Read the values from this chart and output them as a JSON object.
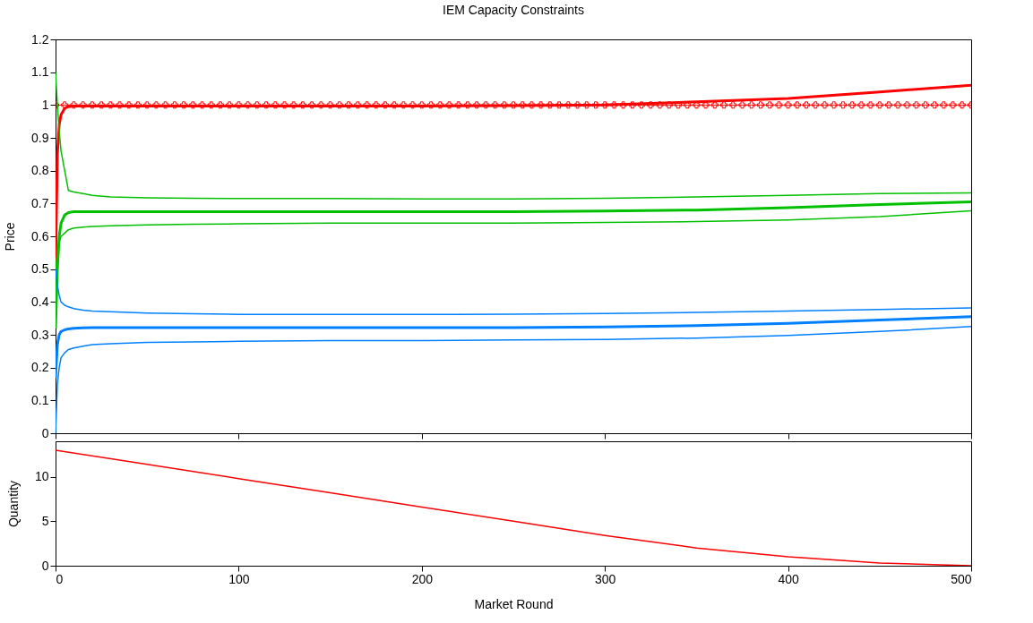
{
  "chart_data": [
    {
      "type": "line",
      "title": "IEM Capacity Constraints",
      "ylabel": "Price",
      "xlim": [
        0,
        500
      ],
      "xticks": [
        0,
        100,
        200,
        300,
        400,
        500
      ],
      "ylim": [
        0,
        1.2
      ],
      "yticks": [
        0,
        0.1,
        0.2,
        0.3,
        0.4,
        0.5,
        0.6,
        0.7,
        0.8,
        0.9,
        1,
        1.1,
        1.2
      ],
      "tick_labels": "y",
      "x": [
        0,
        1,
        2,
        3,
        5,
        7,
        10,
        15,
        20,
        30,
        50,
        75,
        100,
        150,
        200,
        250,
        300,
        350,
        400,
        450,
        500
      ],
      "series": [
        {
          "color": "#ff0000",
          "marker": "cross",
          "x": [
            0,
            5,
            10,
            15,
            20,
            25,
            30,
            35,
            40,
            45,
            50,
            55,
            60,
            65,
            70,
            75,
            80,
            85,
            90,
            95,
            100,
            105,
            110,
            115,
            120,
            125,
            130,
            135,
            140,
            145,
            150,
            155,
            160,
            165,
            170,
            175,
            180,
            185,
            190,
            195,
            200,
            205,
            210,
            215,
            220,
            225,
            230,
            235,
            240,
            245,
            250,
            255,
            260,
            265,
            270,
            275,
            280,
            285,
            290,
            295,
            300,
            305,
            310,
            315,
            320,
            325,
            330,
            335,
            340,
            345,
            350,
            355,
            360,
            365,
            370,
            375,
            380,
            385,
            390,
            395,
            400,
            405,
            410,
            415,
            420,
            425,
            430,
            435,
            440,
            445,
            450,
            455,
            460,
            465,
            470,
            475,
            480,
            485,
            490,
            495,
            500
          ],
          "values": [
            1,
            1,
            1,
            1,
            1,
            1,
            1,
            1,
            1,
            1,
            1,
            1,
            1,
            1,
            1,
            1,
            1,
            1,
            1,
            1,
            1,
            1,
            1,
            1,
            1,
            1,
            1,
            1,
            1,
            1,
            1,
            1,
            1,
            1,
            1,
            1,
            1,
            1,
            1,
            1,
            1,
            1,
            1,
            1,
            1,
            1,
            1,
            1,
            1,
            1,
            1,
            1,
            1,
            1,
            1,
            1,
            1,
            1,
            1,
            1,
            1,
            1,
            1,
            1,
            1,
            1,
            1,
            1,
            1,
            1,
            1,
            1,
            1,
            1,
            1,
            1,
            1,
            1,
            1,
            1,
            1,
            1,
            1,
            1,
            1,
            1,
            1,
            1,
            1,
            1,
            1,
            1,
            1,
            1,
            1,
            1,
            1,
            1,
            1,
            1,
            1
          ]
        },
        {
          "color": "#ff0000",
          "values": [
            0.5,
            0.85,
            0.94,
            0.97,
            0.99,
            0.995,
            0.997,
            0.997,
            0.997,
            0.997,
            0.997,
            0.997,
            0.997,
            0.997,
            0.997,
            0.998,
            1.0,
            1.01,
            1.02,
            1.04,
            1.06
          ]
        },
        {
          "color": "#00c000",
          "values": [
            1.1,
            1.0,
            0.92,
            0.86,
            0.8,
            0.74,
            0.735,
            0.73,
            0.725,
            0.72,
            0.717,
            0.716,
            0.715,
            0.715,
            0.714,
            0.714,
            0.716,
            0.72,
            0.725,
            0.73,
            0.732
          ]
        },
        {
          "color": "#00c000",
          "values": [
            0.32,
            0.5,
            0.6,
            0.64,
            0.665,
            0.672,
            0.675,
            0.675,
            0.675,
            0.675,
            0.675,
            0.675,
            0.675,
            0.675,
            0.675,
            0.675,
            0.677,
            0.68,
            0.687,
            0.697,
            0.705
          ]
        },
        {
          "color": "#00c000",
          "values": [
            0.5,
            0.55,
            0.58,
            0.6,
            0.61,
            0.62,
            0.625,
            0.628,
            0.63,
            0.632,
            0.635,
            0.637,
            0.638,
            0.64,
            0.64,
            0.64,
            0.642,
            0.645,
            0.65,
            0.66,
            0.678
          ]
        },
        {
          "color": "#0080ff",
          "values": [
            0.5,
            0.45,
            0.42,
            0.4,
            0.39,
            0.385,
            0.38,
            0.375,
            0.372,
            0.37,
            0.366,
            0.364,
            0.362,
            0.362,
            0.362,
            0.363,
            0.365,
            0.368,
            0.372,
            0.377,
            0.382
          ]
        },
        {
          "color": "#0080ff",
          "values": [
            0.17,
            0.27,
            0.3,
            0.31,
            0.315,
            0.318,
            0.32,
            0.321,
            0.322,
            0.322,
            0.322,
            0.322,
            0.322,
            0.322,
            0.322,
            0.322,
            0.324,
            0.328,
            0.335,
            0.345,
            0.355
          ]
        },
        {
          "color": "#0080ff",
          "values": [
            0,
            0.15,
            0.2,
            0.23,
            0.245,
            0.255,
            0.26,
            0.265,
            0.27,
            0.273,
            0.277,
            0.278,
            0.28,
            0.282,
            0.282,
            0.284,
            0.286,
            0.29,
            0.298,
            0.31,
            0.325
          ]
        }
      ]
    },
    {
      "type": "line",
      "xlabel": "Market Round",
      "ylabel": "Quantity",
      "xlim": [
        0,
        500
      ],
      "xticks": [
        0,
        100,
        200,
        300,
        400,
        500
      ],
      "ylim": [
        0,
        14
      ],
      "yticks": [
        0,
        5,
        10
      ],
      "x": [
        0,
        50,
        100,
        150,
        200,
        250,
        300,
        350,
        400,
        450,
        500
      ],
      "series": [
        {
          "color": "#ff0000",
          "values": [
            13,
            11.4,
            9.8,
            8.2,
            6.6,
            5.0,
            3.4,
            2.0,
            1.0,
            0.3,
            0
          ]
        }
      ]
    }
  ]
}
